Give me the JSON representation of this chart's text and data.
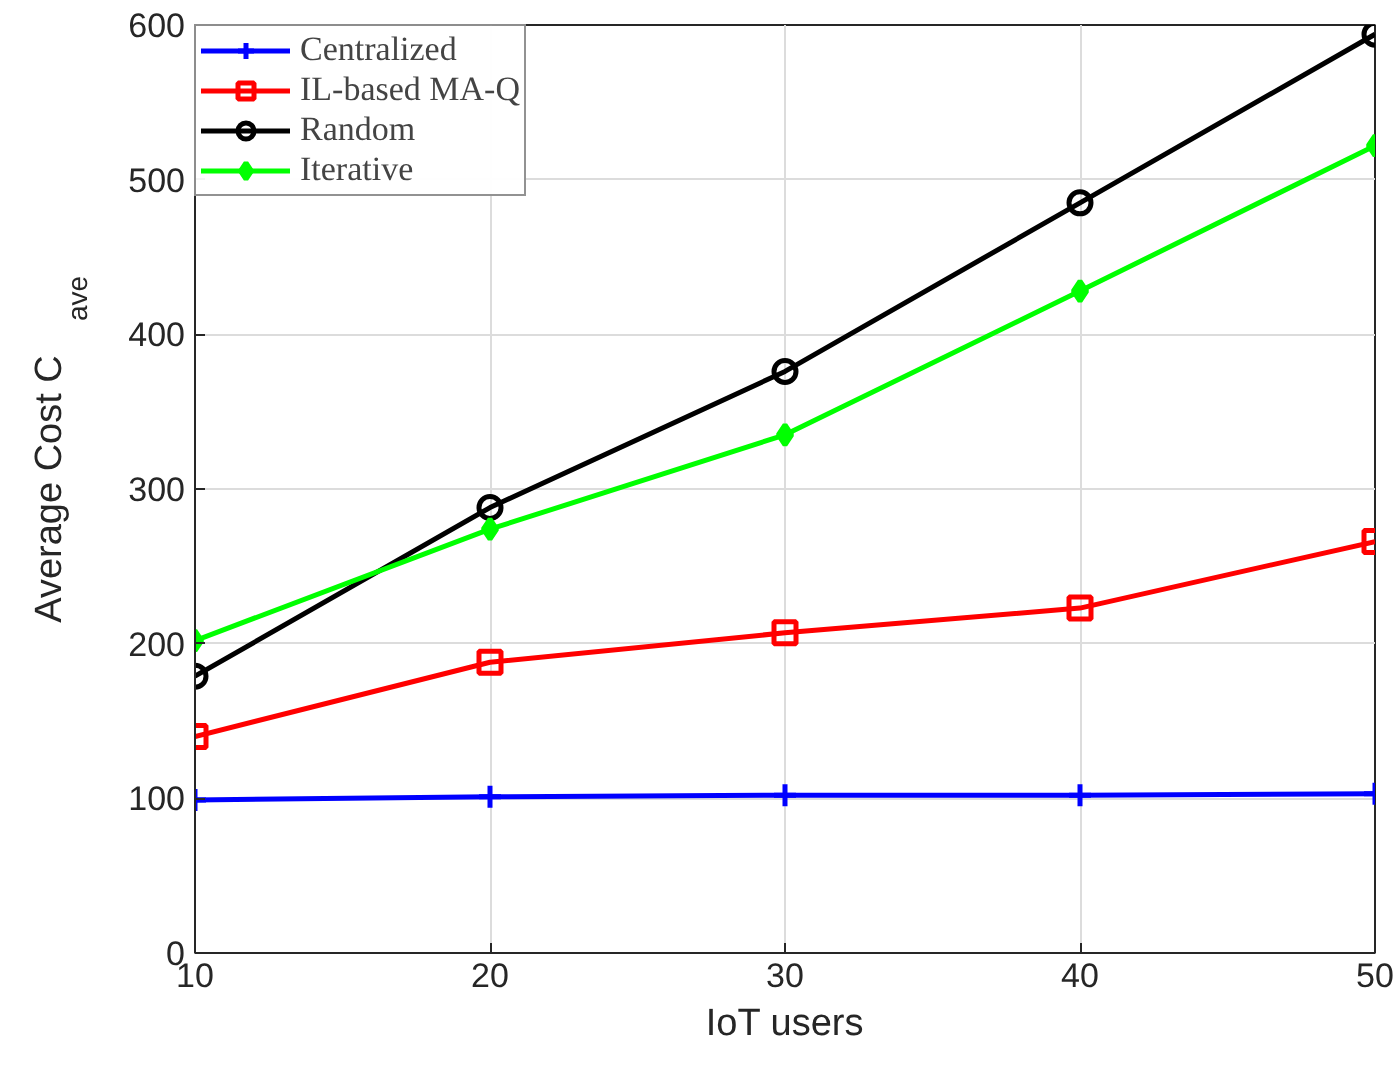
{
  "chart_data": {
    "type": "line",
    "xlabel": "IoT users",
    "ylabel": "Average Cost C$_{ave}$",
    "x": [
      10,
      20,
      30,
      40,
      50
    ],
    "xlim": [
      10,
      50
    ],
    "xticks": [
      10,
      20,
      30,
      40,
      50
    ],
    "ylim": [
      0,
      600
    ],
    "yticks": [
      0,
      100,
      200,
      300,
      400,
      500,
      600
    ],
    "grid": true,
    "legend": "top left",
    "line_style": "solid",
    "series": [
      {
        "name": "Centralized",
        "color": "#0000ff",
        "marker": "cross",
        "values": [
          99,
          101,
          102,
          102,
          103
        ]
      },
      {
        "name": "IL-based MA-Q",
        "color": "#ff0000",
        "marker": "square",
        "values": [
          140,
          188,
          207,
          223,
          266
        ]
      },
      {
        "name": "Random",
        "color": "#000000",
        "marker": "circle",
        "values": [
          179,
          288,
          376,
          485,
          594
        ]
      },
      {
        "name": "Iterative",
        "color": "#00ff00",
        "marker": "diamond",
        "values": [
          202,
          274,
          335,
          428,
          522
        ]
      }
    ]
  }
}
